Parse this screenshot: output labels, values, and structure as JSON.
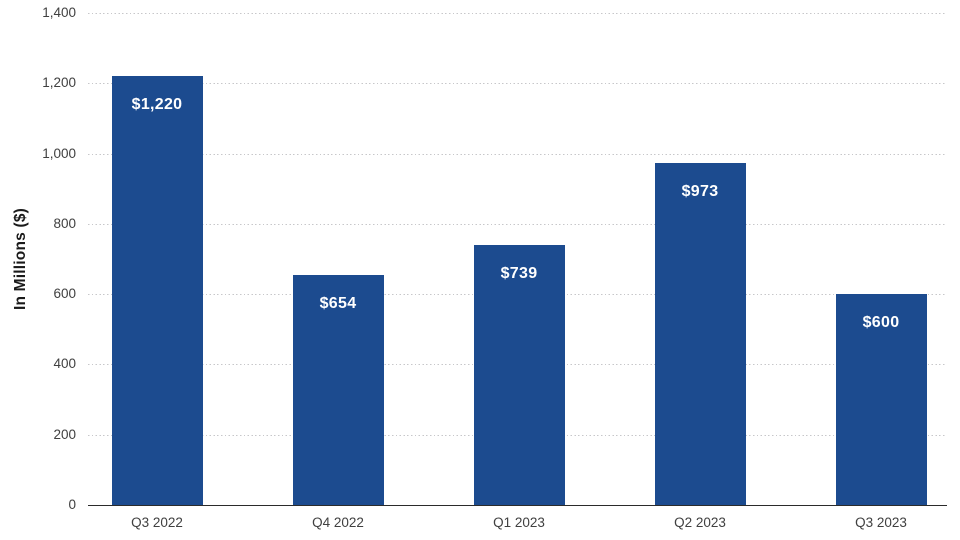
{
  "colors": {
    "bar": "#1c4b8f",
    "bar_label": "#ffffff",
    "gridline": "#c7c7ca",
    "axis_line": "#2b2b2b",
    "tick_text": "#404040",
    "axis_title_text": "#1a1a1a"
  },
  "chart_data": {
    "type": "bar",
    "categories": [
      "Q3 2022",
      "Q4 2022",
      "Q1 2023",
      "Q2 2023",
      "Q3 2023"
    ],
    "values": [
      1220,
      654,
      739,
      973,
      600
    ],
    "data_labels": [
      "$1,220",
      "$654",
      "$739",
      "$973",
      "$600"
    ],
    "xlabel": "",
    "ylabel": "In Millions ($)",
    "ylim": [
      0,
      1400
    ],
    "ytick_values": [
      0,
      200,
      400,
      600,
      800,
      1000,
      1200,
      1400
    ],
    "ytick_labels": [
      "0",
      "200",
      "400",
      "600",
      "800",
      "1,000",
      "1,200",
      "1,400"
    ],
    "grid": "horizontal-dotted",
    "legend": "none"
  }
}
